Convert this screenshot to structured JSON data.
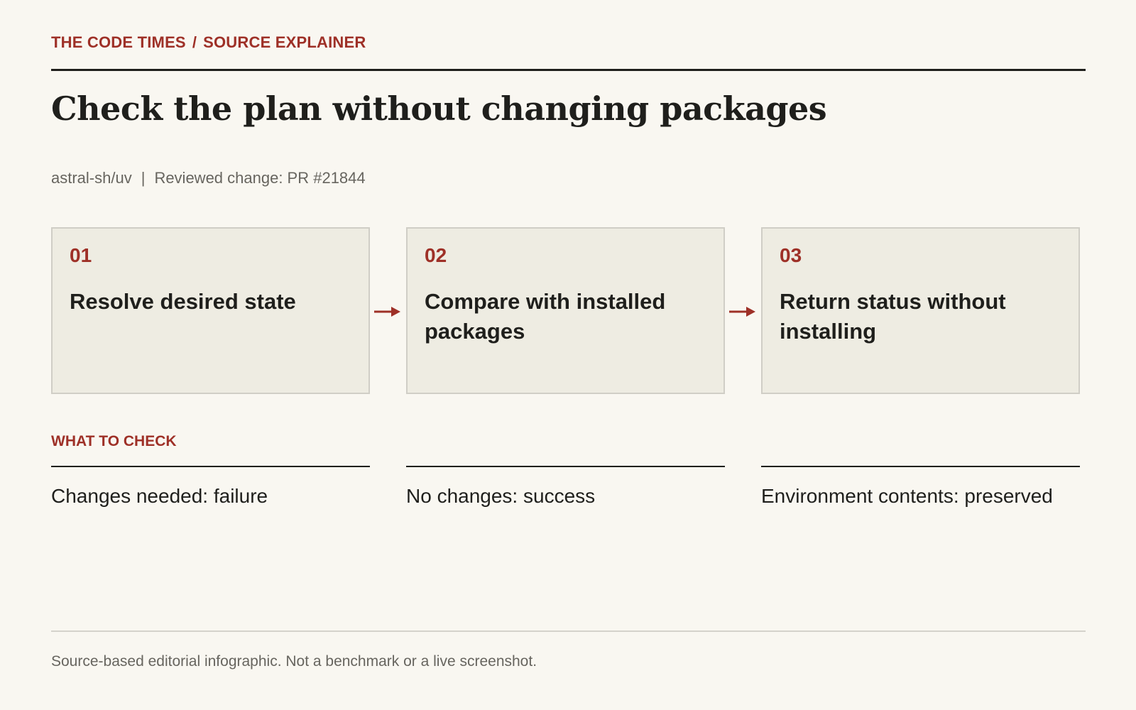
{
  "header": {
    "publication": "THE CODE TIMES",
    "separator": "/",
    "section": "SOURCE EXPLAINER",
    "headline": "Check the plan without changing packages",
    "repo": "astral-sh/uv",
    "meta_separator": "|",
    "reviewed_change": "Reviewed change: PR #21844"
  },
  "steps": [
    {
      "number": "01",
      "label": "Resolve desired state"
    },
    {
      "number": "02",
      "label": "Compare with installed packages"
    },
    {
      "number": "03",
      "label": "Return status without installing"
    }
  ],
  "what_to_check": {
    "title": "WHAT TO CHECK",
    "items": [
      {
        "text": "Changes needed: failure"
      },
      {
        "text": "No changes: success"
      },
      {
        "text": "Environment contents: preserved"
      }
    ]
  },
  "footer": {
    "note": "Source-based editorial infographic. Not a benchmark or a live screenshot."
  },
  "colors": {
    "accent": "#9e3027",
    "background": "#f9f7f1",
    "card": "#eeece2",
    "ink": "#1f1f1c",
    "muted": "#67655f"
  },
  "icons": [
    "arrow-right-icon"
  ]
}
